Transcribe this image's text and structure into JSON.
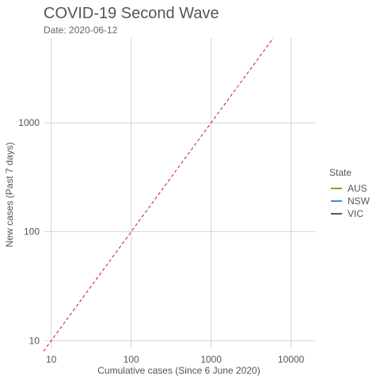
{
  "chart_data": {
    "type": "line",
    "title": "COVID-19 Second Wave",
    "subtitle": "Date: 2020-06-12",
    "xlabel": "Cumulative cases (Since 6 June 2020)",
    "ylabel": "New cases (Past 7 days)",
    "x_scale": "log",
    "y_scale": "log",
    "xlim": [
      8,
      20000
    ],
    "ylim": [
      8.5,
      6000
    ],
    "x_ticks": [
      10,
      100,
      1000,
      10000
    ],
    "x_tick_labels": [
      "10",
      "100",
      "1000",
      "10000"
    ],
    "y_ticks": [
      10,
      100,
      1000
    ],
    "y_tick_labels": [
      "10",
      "100",
      "1000"
    ],
    "grid": true,
    "legend": {
      "title": "State",
      "placement": "right",
      "entries": [
        {
          "label": "AUS",
          "color": "#6aab3f"
        },
        {
          "label": "NSW",
          "color": "#4a8bc4"
        },
        {
          "label": "VIC",
          "color": "#3a5a8a"
        }
      ]
    },
    "series": [],
    "reference_line": {
      "style": "dashed",
      "color": "#c8143c",
      "points": [
        [
          8,
          8
        ],
        [
          6000,
          6000
        ]
      ]
    }
  }
}
